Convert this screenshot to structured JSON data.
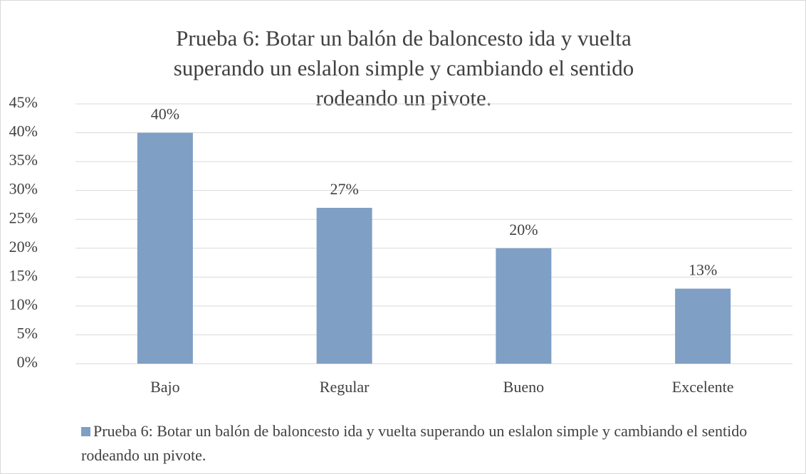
{
  "chart_data": {
    "type": "bar",
    "title": "Prueba 6: Botar un balón de baloncesto ida y vuelta superando un eslalon simple y cambiando el sentido rodeando un pivote.",
    "categories": [
      "Bajo",
      "Regular",
      "Bueno",
      "Excelente"
    ],
    "series": [
      {
        "name": "Prueba 6: Botar un balón de baloncesto ida y vuelta superando un eslalon simple y cambiando el sentido rodeando un pivote.",
        "color": "#7f9fc5",
        "values": [
          40,
          27,
          20,
          13
        ],
        "value_labels": [
          "40%",
          "27%",
          "20%",
          "13%"
        ]
      }
    ],
    "ylim": [
      0,
      45
    ],
    "yticks": [
      {
        "value": 0,
        "label": "0%"
      },
      {
        "value": 5,
        "label": "5%"
      },
      {
        "value": 10,
        "label": "10%"
      },
      {
        "value": 15,
        "label": "15%"
      },
      {
        "value": 20,
        "label": "20%"
      },
      {
        "value": 25,
        "label": "25%"
      },
      {
        "value": 30,
        "label": "30%"
      },
      {
        "value": 35,
        "label": "35%"
      },
      {
        "value": 40,
        "label": "40%"
      },
      {
        "value": 45,
        "label": "45%"
      }
    ],
    "grid": true,
    "legend": "bottom"
  }
}
